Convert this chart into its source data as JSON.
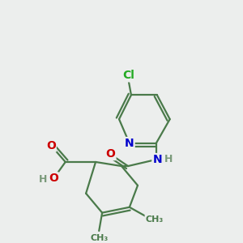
{
  "bg_color": "#eceeed",
  "atom_colors": {
    "C": "#4a7a4a",
    "N": "#0000cc",
    "O": "#cc0000",
    "Cl": "#22aa22",
    "H": "#7a9a7a"
  },
  "bond_color": "#4a7a4a",
  "bond_width": 1.6,
  "font_size_atom": 10,
  "font_size_h": 9
}
